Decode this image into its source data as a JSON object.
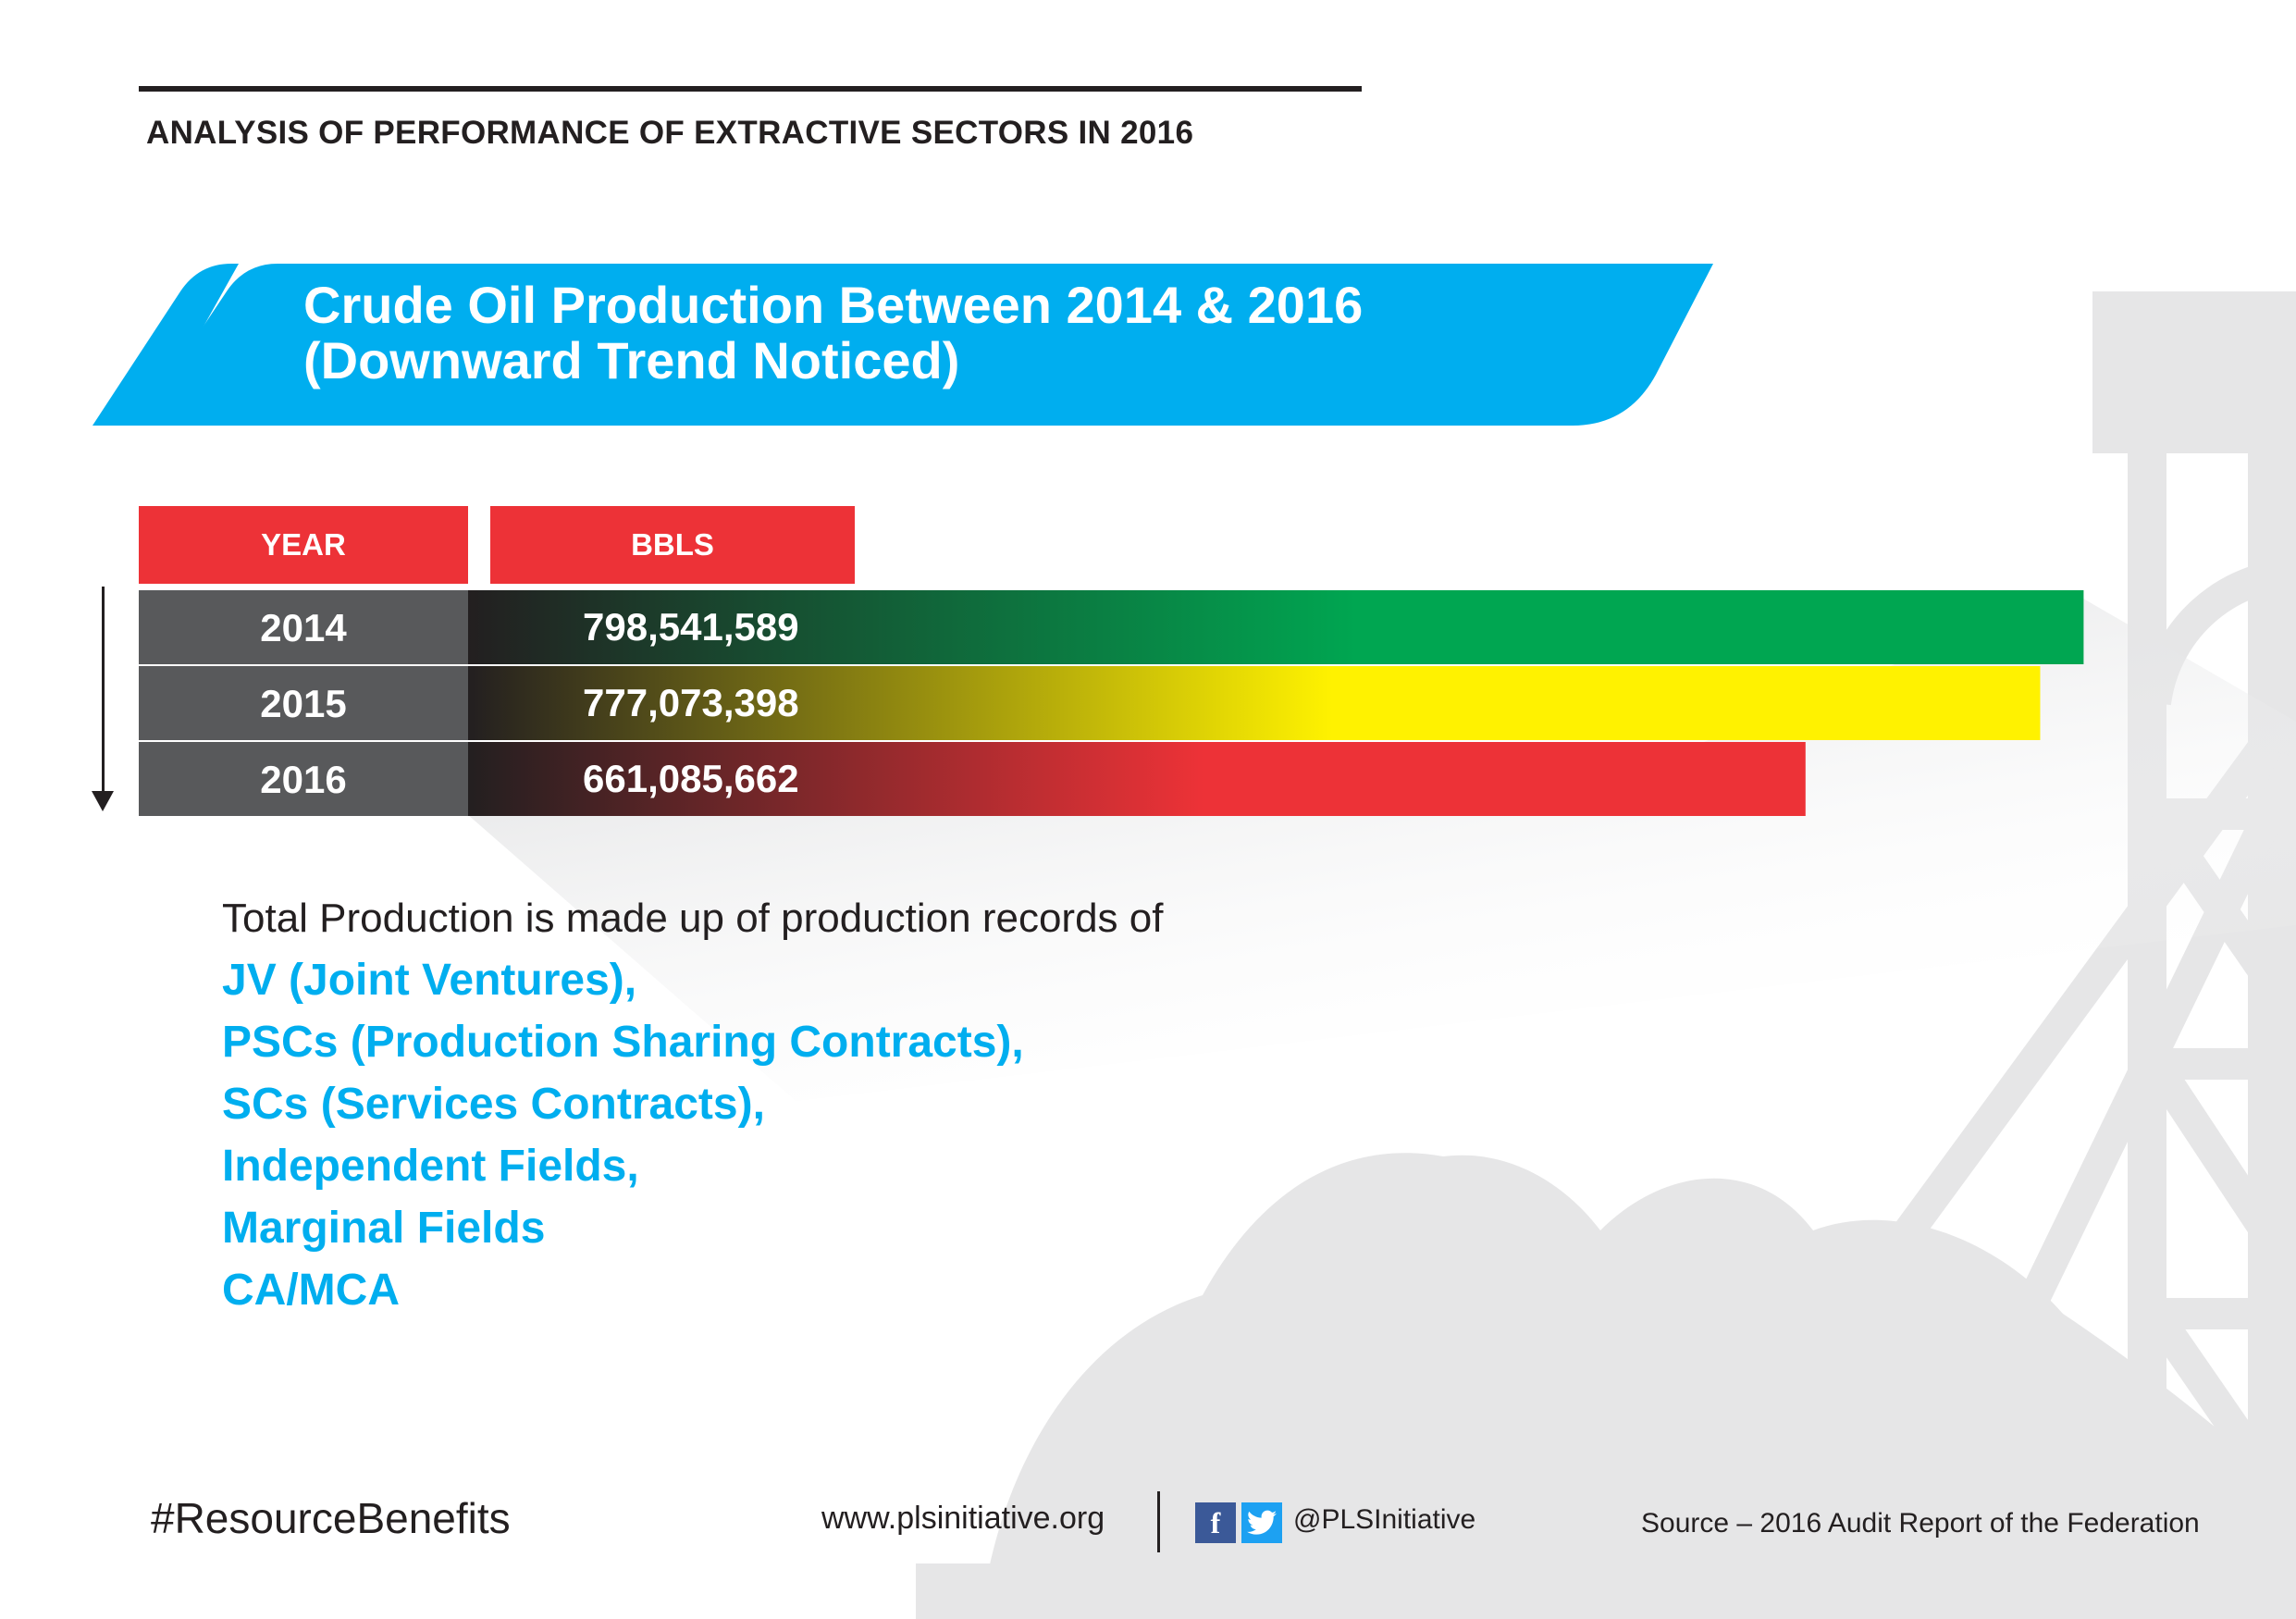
{
  "header": {
    "page_heading": "ANALYSIS OF PERFORMANCE OF EXTRACTIVE SECTORS IN 2016"
  },
  "banner": {
    "title_line1": "Crude Oil Production Between 2014 & 2016",
    "title_line2": "(Downward Trend Noticed)"
  },
  "chart_data": {
    "type": "bar",
    "orientation": "horizontal",
    "title": "Crude Oil Production Between 2014 & 2016",
    "subtitle": "(Downward Trend Noticed)",
    "column_headers": {
      "year": "YEAR",
      "value": "BBLS"
    },
    "categories": [
      "2014",
      "2015",
      "2016"
    ],
    "values": [
      798541589,
      777073398,
      661085662
    ],
    "value_labels": [
      "798,541,589",
      "777,073,398",
      "661,085,662"
    ],
    "bar_colors": [
      "#00a651",
      "#fff200",
      "#ed3237"
    ],
    "value_axis_range": [
      0,
      1000000000
    ],
    "trend_arrow": "down",
    "grid": false,
    "legend": "none"
  },
  "composition": {
    "intro": "Total Production is made up of production records of",
    "items": [
      "JV (Joint Ventures),",
      "PSCs (Production Sharing Contracts),",
      "SCs (Services Contracts),",
      "Independent Fields,",
      "Marginal Fields",
      "CA/MCA"
    ]
  },
  "footer": {
    "hashtag": "#ResourceBenefits",
    "website": "www.plsinitiative.org",
    "social_handle": "@PLSInitiative",
    "facebook_glyph": "f",
    "source": "Source – 2016 Audit Report of the Federation"
  },
  "colors": {
    "accent_blue": "#00aeef",
    "header_red": "#ed3237",
    "year_cell_gray": "#58595b",
    "text_dark": "#231f20"
  },
  "icons": [
    "facebook-icon",
    "twitter-icon",
    "down-arrow-icon",
    "oil-derrick-illustration"
  ]
}
